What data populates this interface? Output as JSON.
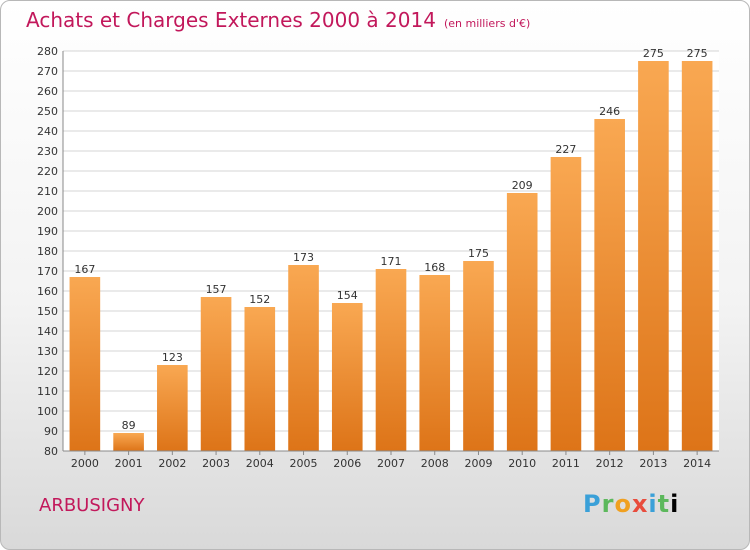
{
  "header": {
    "title": "Achats et Charges Externes 2000 à 2014",
    "subtitle": "(en milliers d'€)"
  },
  "footer": {
    "place": "ARBUSIGNY",
    "logo": [
      "P",
      "r",
      "o",
      "x",
      "i",
      "t",
      "i"
    ]
  },
  "colors": {
    "title": "#c2185b",
    "bar_light": "#f9a852",
    "bar_dark": "#e07a1e",
    "grid": "#cfcfcf"
  },
  "chart_data": {
    "type": "bar",
    "title": "Achats et Charges Externes 2000 à 2014",
    "categories": [
      "2000",
      "2001",
      "2002",
      "2003",
      "2004",
      "2005",
      "2006",
      "2007",
      "2008",
      "2009",
      "2010",
      "2011",
      "2012",
      "2013",
      "2014"
    ],
    "values": [
      167,
      89,
      123,
      157,
      152,
      173,
      154,
      171,
      168,
      175,
      209,
      227,
      246,
      275,
      275
    ],
    "ylim": [
      80,
      280
    ],
    "yticks": [
      80,
      90,
      100,
      110,
      120,
      130,
      140,
      150,
      160,
      170,
      180,
      190,
      200,
      210,
      220,
      230,
      240,
      250,
      260,
      270,
      280
    ],
    "grid": true,
    "xlabel": "",
    "ylabel": ""
  }
}
